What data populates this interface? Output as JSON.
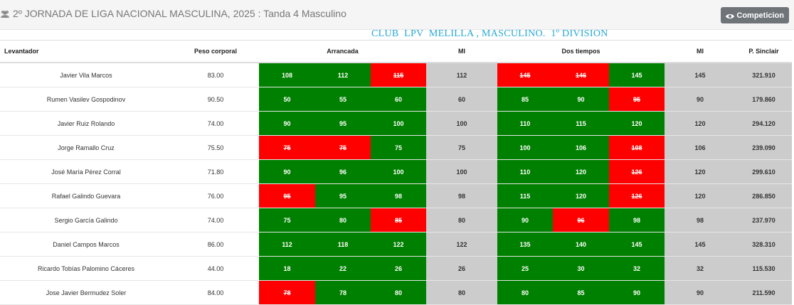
{
  "page": {
    "title": "2º JORNADA DE LIGA NACIONAL MASCULINA, 2025 : Tanda 4 Masculino",
    "button_label": "Competicion",
    "club_label": "CLUB  LPV  MELILLA , MASCULINO.  1º DIVISION"
  },
  "table": {
    "headers": {
      "lifter": "Levantador",
      "bodyweight": "Peso corporal",
      "snatch": "Arrancada",
      "mi1": "MI",
      "cj": "Dos tiempos",
      "mi2": "MI",
      "sinclair": "P. Sinclair"
    },
    "rows": [
      {
        "name": "Javier Vila Marcos",
        "bw": "83.00",
        "sn": [
          "108",
          "112",
          "115"
        ],
        "sn_ok": [
          true,
          true,
          false
        ],
        "mi1": "112",
        "cj": [
          "145",
          "146",
          "145"
        ],
        "cj_ok": [
          false,
          false,
          true
        ],
        "mi2": "145",
        "sinclair": "321.910"
      },
      {
        "name": "Rumen Vasilev Gospodinov",
        "bw": "90.50",
        "sn": [
          "50",
          "55",
          "60"
        ],
        "sn_ok": [
          true,
          true,
          true
        ],
        "mi1": "60",
        "cj": [
          "85",
          "90",
          "95"
        ],
        "cj_ok": [
          true,
          true,
          false
        ],
        "mi2": "90",
        "sinclair": "179.860"
      },
      {
        "name": "Javier Ruiz Rolando",
        "bw": "74.00",
        "sn": [
          "90",
          "95",
          "100"
        ],
        "sn_ok": [
          true,
          true,
          true
        ],
        "mi1": "100",
        "cj": [
          "110",
          "115",
          "120"
        ],
        "cj_ok": [
          true,
          true,
          true
        ],
        "mi2": "120",
        "sinclair": "294.120"
      },
      {
        "name": "Jorge Ramallo Cruz",
        "bw": "75.50",
        "sn": [
          "75",
          "75",
          "75"
        ],
        "sn_ok": [
          false,
          false,
          true
        ],
        "mi1": "75",
        "cj": [
          "100",
          "106",
          "108"
        ],
        "cj_ok": [
          true,
          true,
          false
        ],
        "mi2": "106",
        "sinclair": "239.090"
      },
      {
        "name": "José María Pérez Corral",
        "bw": "71.80",
        "sn": [
          "90",
          "96",
          "100"
        ],
        "sn_ok": [
          true,
          true,
          true
        ],
        "mi1": "100",
        "cj": [
          "110",
          "120",
          "126"
        ],
        "cj_ok": [
          true,
          true,
          false
        ],
        "mi2": "120",
        "sinclair": "299.610"
      },
      {
        "name": "Rafael Galindo Guevara",
        "bw": "76.00",
        "sn": [
          "95",
          "95",
          "98"
        ],
        "sn_ok": [
          false,
          true,
          true
        ],
        "mi1": "98",
        "cj": [
          "115",
          "120",
          "126"
        ],
        "cj_ok": [
          true,
          true,
          false
        ],
        "mi2": "120",
        "sinclair": "286.850"
      },
      {
        "name": "Sergio García Galindo",
        "bw": "74.00",
        "sn": [
          "75",
          "80",
          "85"
        ],
        "sn_ok": [
          true,
          true,
          false
        ],
        "mi1": "80",
        "cj": [
          "90",
          "96",
          "98"
        ],
        "cj_ok": [
          true,
          false,
          true
        ],
        "mi2": "98",
        "sinclair": "237.970"
      },
      {
        "name": "Daniel Campos Marcos",
        "bw": "86.00",
        "sn": [
          "112",
          "118",
          "122"
        ],
        "sn_ok": [
          true,
          true,
          true
        ],
        "mi1": "122",
        "cj": [
          "135",
          "140",
          "145"
        ],
        "cj_ok": [
          true,
          true,
          true
        ],
        "mi2": "145",
        "sinclair": "328.310"
      },
      {
        "name": "Ricardo Tobías Palomino Cáceres",
        "bw": "44.00",
        "sn": [
          "18",
          "22",
          "26"
        ],
        "sn_ok": [
          true,
          true,
          true
        ],
        "mi1": "26",
        "cj": [
          "25",
          "30",
          "32"
        ],
        "cj_ok": [
          true,
          true,
          true
        ],
        "mi2": "32",
        "sinclair": "115.530"
      },
      {
        "name": "Jose Javier Bermudez Soler",
        "bw": "84.00",
        "sn": [
          "78",
          "78",
          "80"
        ],
        "sn_ok": [
          false,
          true,
          true
        ],
        "mi1": "80",
        "cj": [
          "80",
          "85",
          "90"
        ],
        "cj_ok": [
          true,
          true,
          true
        ],
        "mi2": "90",
        "sinclair": "211.590"
      }
    ]
  },
  "colors": {
    "good": "#008000",
    "fail": "#ff0000",
    "mi_bg": "#cccccc",
    "club_text": "#26a8d8"
  },
  "icons": {
    "title_icon": "users-icon",
    "button_icon": "eye-icon"
  }
}
